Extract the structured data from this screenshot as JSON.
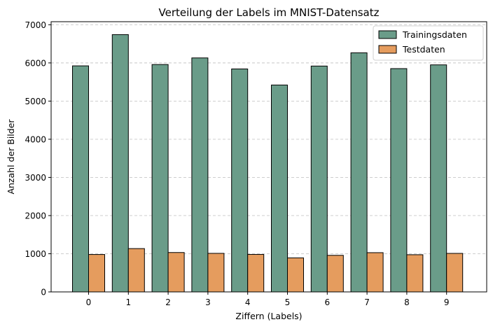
{
  "chart_data": {
    "type": "bar",
    "title": "Verteilung der Labels im MNIST-Datensatz",
    "xlabel": "Ziffern (Labels)",
    "ylabel": "Anzahl der Bilder",
    "categories": [
      "0",
      "1",
      "2",
      "3",
      "4",
      "5",
      "6",
      "7",
      "8",
      "9"
    ],
    "series": [
      {
        "name": "Trainingsdaten",
        "color": "#6a9c89",
        "values": [
          5923,
          6742,
          5958,
          6131,
          5842,
          5421,
          5918,
          6265,
          5851,
          5949
        ]
      },
      {
        "name": "Testdaten",
        "color": "#e59c5e",
        "values": [
          980,
          1135,
          1032,
          1010,
          982,
          892,
          958,
          1028,
          974,
          1009
        ]
      }
    ],
    "ylim": [
      0,
      7080
    ],
    "yticks": [
      "0",
      "1000",
      "2000",
      "3000",
      "4000",
      "5000",
      "6000",
      "7000"
    ],
    "grid": "y-dashed",
    "legend_position": "top-right"
  }
}
